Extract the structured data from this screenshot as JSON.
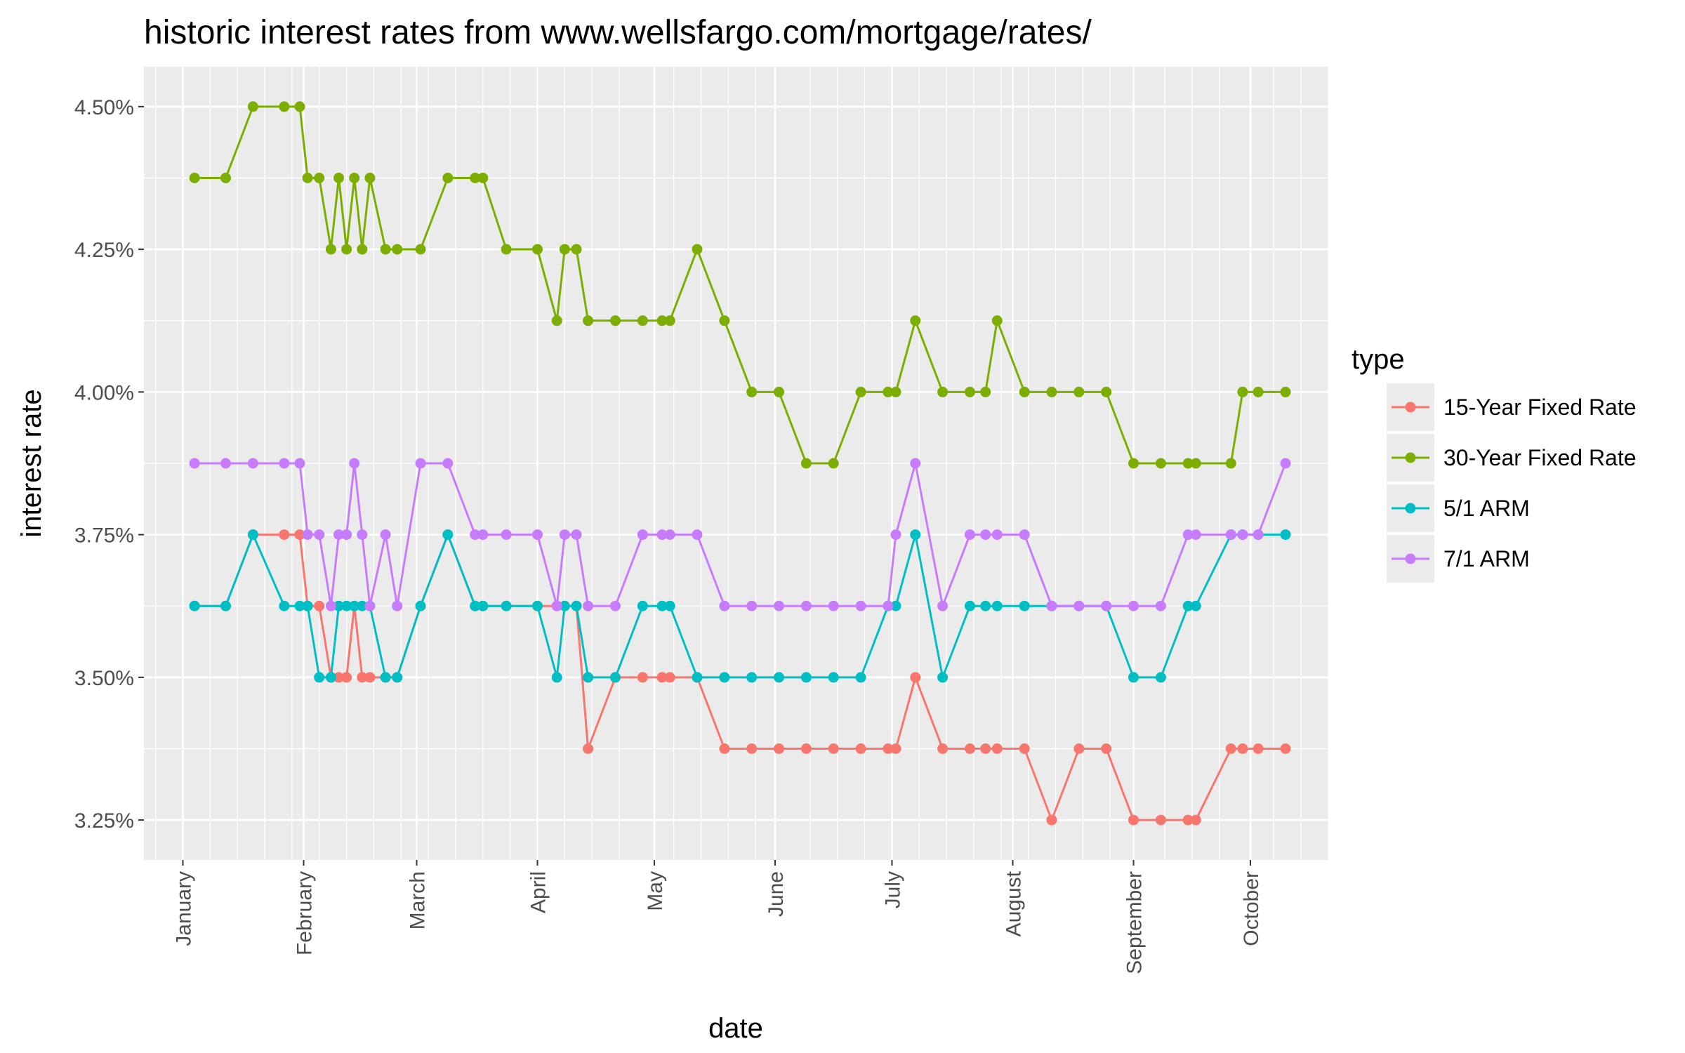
{
  "chart_data": {
    "type": "line",
    "title": "historic interest rates from www.wellsfargo.com/mortgage/rates/",
    "xlabel": "date",
    "ylabel": "interest rate",
    "x_ticks": [
      "January",
      "February",
      "March",
      "April",
      "May",
      "June",
      "July",
      "August",
      "September",
      "October"
    ],
    "x_tick_dates": [
      "2016-01-01",
      "2016-02-01",
      "2016-03-01",
      "2016-04-01",
      "2016-05-01",
      "2016-06-01",
      "2016-07-01",
      "2016-08-01",
      "2016-09-01",
      "2016-10-01"
    ],
    "xlim": [
      "2015-12-22",
      "2016-10-21"
    ],
    "y_ticks": [
      3.25,
      3.5,
      3.75,
      4.0,
      4.25,
      4.5
    ],
    "y_tick_labels": [
      "3.25%",
      "3.50%",
      "3.75%",
      "4.00%",
      "4.25%",
      "4.50%"
    ],
    "ylim": [
      3.18,
      4.57
    ],
    "grid": true,
    "legend_title": "type",
    "legend_position": "right",
    "x": [
      "2016-01-04",
      "2016-01-12",
      "2016-01-19",
      "2016-01-27",
      "2016-01-31",
      "2016-02-02",
      "2016-02-05",
      "2016-02-08",
      "2016-02-10",
      "2016-02-12",
      "2016-02-14",
      "2016-02-16",
      "2016-02-18",
      "2016-02-22",
      "2016-02-25",
      "2016-03-02",
      "2016-03-09",
      "2016-03-16",
      "2016-03-18",
      "2016-03-24",
      "2016-04-01",
      "2016-04-06",
      "2016-04-08",
      "2016-04-11",
      "2016-04-14",
      "2016-04-21",
      "2016-04-28",
      "2016-05-03",
      "2016-05-05",
      "2016-05-12",
      "2016-05-19",
      "2016-05-26",
      "2016-06-02",
      "2016-06-09",
      "2016-06-16",
      "2016-06-23",
      "2016-06-30",
      "2016-07-02",
      "2016-07-07",
      "2016-07-14",
      "2016-07-21",
      "2016-07-25",
      "2016-07-28",
      "2016-08-04",
      "2016-08-11",
      "2016-08-18",
      "2016-08-25",
      "2016-09-01",
      "2016-09-08",
      "2016-09-15",
      "2016-09-17",
      "2016-09-26",
      "2016-09-29",
      "2016-10-03",
      "2016-10-10"
    ],
    "series": [
      {
        "name": "15-Year Fixed Rate",
        "color": "#f8766d",
        "values": [
          3.625,
          3.625,
          3.75,
          3.75,
          3.75,
          3.625,
          3.625,
          3.5,
          3.5,
          3.5,
          3.625,
          3.5,
          3.5,
          3.5,
          3.5,
          3.625,
          3.75,
          3.625,
          3.625,
          3.625,
          3.625,
          3.625,
          3.625,
          3.625,
          3.375,
          3.5,
          3.5,
          3.5,
          3.5,
          3.5,
          3.375,
          3.375,
          3.375,
          3.375,
          3.375,
          3.375,
          3.375,
          3.375,
          3.5,
          3.375,
          3.375,
          3.375,
          3.375,
          3.375,
          3.25,
          3.375,
          3.375,
          3.25,
          3.25,
          3.25,
          3.25,
          3.375,
          3.375,
          3.375,
          3.375
        ]
      },
      {
        "name": "30-Year Fixed Rate",
        "color": "#7cae00",
        "values": [
          4.375,
          4.375,
          4.5,
          4.5,
          4.5,
          4.375,
          4.375,
          4.25,
          4.375,
          4.25,
          4.375,
          4.25,
          4.375,
          4.25,
          4.25,
          4.25,
          4.375,
          4.375,
          4.375,
          4.25,
          4.25,
          4.125,
          4.25,
          4.25,
          4.125,
          4.125,
          4.125,
          4.125,
          4.125,
          4.25,
          4.125,
          4.0,
          4.0,
          3.875,
          3.875,
          4.0,
          4.0,
          4.0,
          4.125,
          4.0,
          4.0,
          4.0,
          4.125,
          4.0,
          4.0,
          4.0,
          4.0,
          3.875,
          3.875,
          3.875,
          3.875,
          3.875,
          4.0,
          4.0,
          4.0
        ]
      },
      {
        "name": "5/1 ARM",
        "color": "#00bfc4",
        "values": [
          3.625,
          3.625,
          3.75,
          3.625,
          3.625,
          3.625,
          3.5,
          3.5,
          3.625,
          3.625,
          3.625,
          3.625,
          3.625,
          3.5,
          3.5,
          3.625,
          3.75,
          3.625,
          3.625,
          3.625,
          3.625,
          3.5,
          3.625,
          3.625,
          3.5,
          3.5,
          3.625,
          3.625,
          3.625,
          3.5,
          3.5,
          3.5,
          3.5,
          3.5,
          3.5,
          3.5,
          3.625,
          3.625,
          3.75,
          3.5,
          3.625,
          3.625,
          3.625,
          3.625,
          3.625,
          3.625,
          3.625,
          3.5,
          3.5,
          3.625,
          3.625,
          3.75,
          3.75,
          3.75,
          3.75
        ]
      },
      {
        "name": "7/1 ARM",
        "color": "#c77cff",
        "values": [
          3.875,
          3.875,
          3.875,
          3.875,
          3.875,
          3.75,
          3.75,
          3.625,
          3.75,
          3.75,
          3.875,
          3.75,
          3.625,
          3.75,
          3.625,
          3.875,
          3.875,
          3.75,
          3.75,
          3.75,
          3.75,
          3.625,
          3.75,
          3.75,
          3.625,
          3.625,
          3.75,
          3.75,
          3.75,
          3.75,
          3.625,
          3.625,
          3.625,
          3.625,
          3.625,
          3.625,
          3.625,
          3.75,
          3.875,
          3.625,
          3.75,
          3.75,
          3.75,
          3.75,
          3.625,
          3.625,
          3.625,
          3.625,
          3.625,
          3.75,
          3.75,
          3.75,
          3.75,
          3.75,
          3.875
        ]
      }
    ]
  }
}
